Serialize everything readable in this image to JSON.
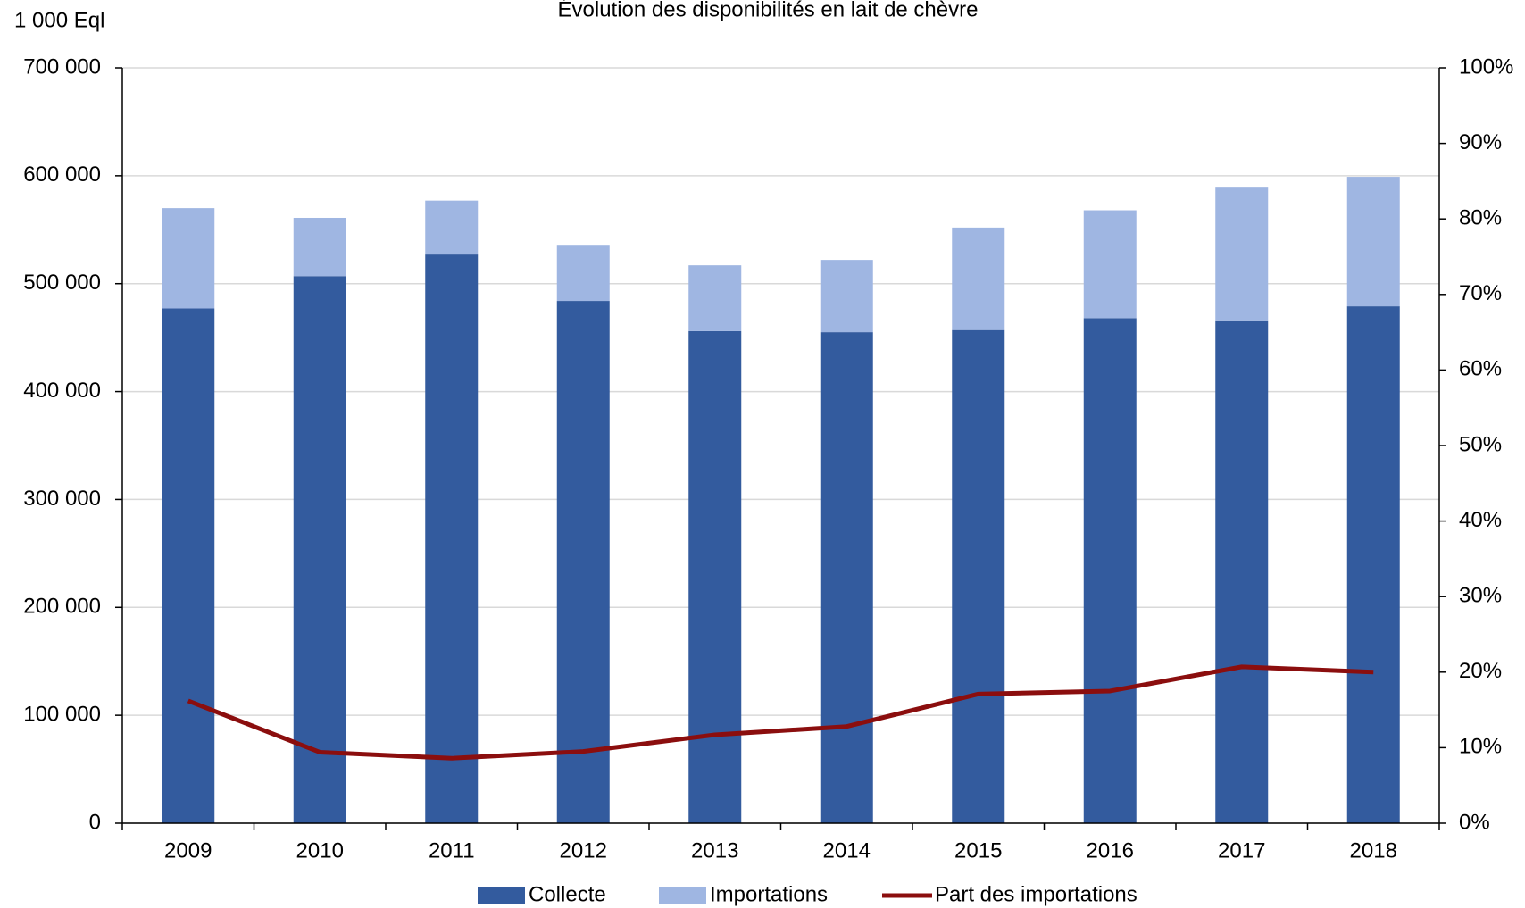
{
  "chart_data": {
    "type": "bar",
    "stacked": true,
    "title": "Évolution des disponibilités en lait de chèvre",
    "y_axis_label": "1 000 Eql",
    "categories": [
      "2009",
      "2010",
      "2011",
      "2012",
      "2013",
      "2014",
      "2015",
      "2016",
      "2017",
      "2018"
    ],
    "series": [
      {
        "name": "Collecte",
        "color": "#335b9e",
        "type": "bar",
        "values": [
          477000,
          507000,
          527000,
          484000,
          456000,
          455000,
          457000,
          468000,
          466000,
          479000
        ]
      },
      {
        "name": "Importations",
        "color": "#9fb6e2",
        "type": "bar",
        "values": [
          93000,
          54000,
          50000,
          52000,
          61000,
          67000,
          95000,
          100000,
          123000,
          120000
        ]
      },
      {
        "name": "Part des importations",
        "color": "#8b0e0e",
        "type": "line",
        "axis": "y2",
        "values": [
          16.2,
          9.4,
          8.6,
          9.5,
          11.7,
          12.8,
          17.1,
          17.5,
          20.7,
          20.0
        ]
      }
    ],
    "ylim": [
      0,
      700000
    ],
    "yticks": [
      {
        "value": 0,
        "label": "0"
      },
      {
        "value": 100000,
        "label": "100 000"
      },
      {
        "value": 200000,
        "label": "200 000"
      },
      {
        "value": 300000,
        "label": "300 000"
      },
      {
        "value": 400000,
        "label": "400 000"
      },
      {
        "value": 500000,
        "label": "500 000"
      },
      {
        "value": 600000,
        "label": "600 000"
      },
      {
        "value": 700000,
        "label": "700 000"
      }
    ],
    "y2lim": [
      0,
      100
    ],
    "y2ticks": [
      {
        "value": 0,
        "label": "0%"
      },
      {
        "value": 10,
        "label": "10%"
      },
      {
        "value": 20,
        "label": "20%"
      },
      {
        "value": 30,
        "label": "30%"
      },
      {
        "value": 40,
        "label": "40%"
      },
      {
        "value": 50,
        "label": "50%"
      },
      {
        "value": 60,
        "label": "60%"
      },
      {
        "value": 70,
        "label": "70%"
      },
      {
        "value": 80,
        "label": "80%"
      },
      {
        "value": 90,
        "label": "90%"
      },
      {
        "value": 100,
        "label": "100%"
      }
    ],
    "grid": true,
    "legend": "bottom"
  }
}
